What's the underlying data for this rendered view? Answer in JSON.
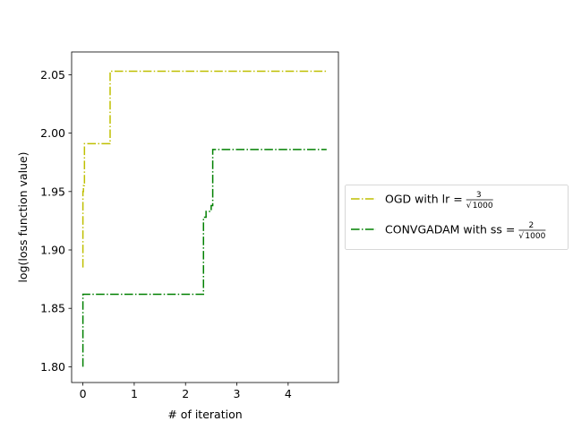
{
  "chart_data": {
    "type": "line",
    "title": "",
    "xlabel": "# of iteration",
    "ylabel": "log(loss function value)",
    "xlim": [
      -0.22,
      4.98
    ],
    "ylim": [
      1.7865,
      2.0695
    ],
    "xticks": [
      0,
      1,
      2,
      3,
      4
    ],
    "xtick_labels": [
      "0",
      "1",
      "2",
      "3",
      "4"
    ],
    "yticks": [
      1.8,
      1.85,
      1.9,
      1.95,
      2.0,
      2.05
    ],
    "ytick_labels": [
      "1.80",
      "1.85",
      "1.90",
      "1.95",
      "2.00",
      "2.05"
    ],
    "grid": false,
    "legend_placement": "outside-right",
    "series": [
      {
        "name": "OGD with lr =",
        "frac_num": "3",
        "frac_den": "1000",
        "color": "#bfbf00",
        "linestyle": "dashdot",
        "x": [
          0.0,
          0.0,
          0.01,
          0.01,
          0.03,
          0.03,
          0.53,
          0.53,
          4.75
        ],
        "y": [
          1.885,
          1.95,
          1.95,
          1.955,
          1.955,
          1.991,
          1.991,
          2.053,
          2.053
        ]
      },
      {
        "name": "CONVGADAM with ss =",
        "frac_num": "2",
        "frac_den": "1000",
        "color": "#008000",
        "linestyle": "dashdot",
        "x": [
          0.0,
          0.0,
          2.35,
          2.35,
          2.4,
          2.4,
          2.5,
          2.5,
          2.53,
          2.53,
          4.75
        ],
        "y": [
          1.8,
          1.862,
          1.862,
          1.928,
          1.928,
          1.933,
          1.933,
          1.938,
          1.938,
          1.986,
          1.986
        ]
      }
    ]
  }
}
